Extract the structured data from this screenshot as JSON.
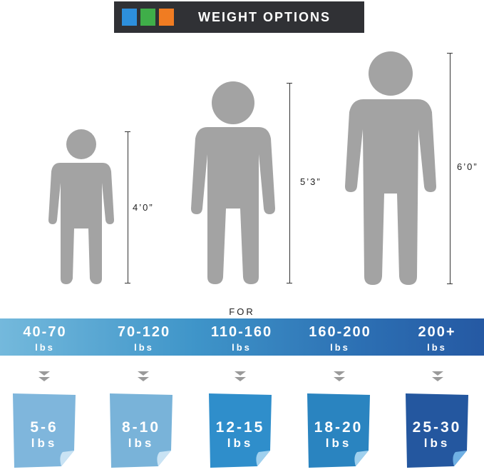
{
  "header": {
    "title": "WEIGHT OPTIONS",
    "squares": [
      {
        "color": "#2d8fdc"
      },
      {
        "color": "#3fae49"
      },
      {
        "color": "#f07c22"
      }
    ]
  },
  "figures": [
    {
      "height_label": "4’0”",
      "color": "#a3a3a3"
    },
    {
      "height_label": "5’3”",
      "color": "#a3a3a3"
    },
    {
      "height_label": "6’0”",
      "color": "#a3a3a3"
    }
  ],
  "for_label": "FOR",
  "ranges": [
    {
      "range": "40-70",
      "unit": "lbs"
    },
    {
      "range": "70-120",
      "unit": "lbs"
    },
    {
      "range": "110-160",
      "unit": "lbs"
    },
    {
      "range": "160-200",
      "unit": "lbs"
    },
    {
      "range": "200+",
      "unit": "lbs"
    }
  ],
  "chevron_icon": "double-chevron-down-icon",
  "options": [
    {
      "weight": "5-6",
      "unit": "lbs",
      "color": "#7fb6dc",
      "fold": "#c9e3f4"
    },
    {
      "weight": "8-10",
      "unit": "lbs",
      "color": "#79b3d9",
      "fold": "#c9e3f4"
    },
    {
      "weight": "12-15",
      "unit": "lbs",
      "color": "#2f8ecb",
      "fold": "#9fd0ee"
    },
    {
      "weight": "18-20",
      "unit": "lbs",
      "color": "#2a84c0",
      "fold": "#9fd0ee"
    },
    {
      "weight": "25-30",
      "unit": "lbs",
      "color": "#24579f",
      "fold": "#6fb0e4"
    }
  ]
}
